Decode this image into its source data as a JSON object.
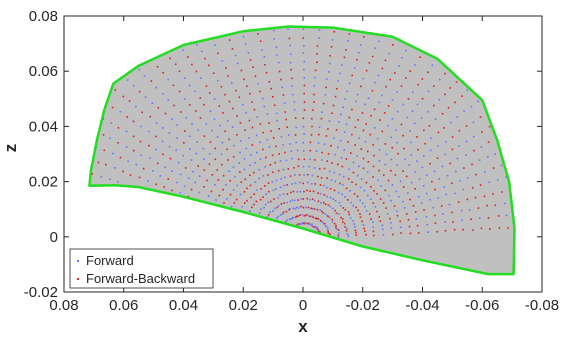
{
  "chart_data": {
    "type": "scatter",
    "title": "",
    "xlabel": "x",
    "ylabel": "z",
    "xlim": [
      0.08,
      -0.08
    ],
    "ylim": [
      -0.02,
      0.08
    ],
    "x_reversed": true,
    "grid": false,
    "legend_position": "bottom-left",
    "x_ticks": [
      {
        "value": 0.08,
        "label": "0.08"
      },
      {
        "value": 0.06,
        "label": "0.06"
      },
      {
        "value": 0.04,
        "label": "0.04"
      },
      {
        "value": 0.02,
        "label": "0.02"
      },
      {
        "value": 0,
        "label": "0"
      },
      {
        "value": -0.02,
        "label": "-0.02"
      },
      {
        "value": -0.04,
        "label": "-0.04"
      },
      {
        "value": -0.06,
        "label": "-0.06"
      },
      {
        "value": -0.08,
        "label": "-0.08"
      }
    ],
    "y_ticks": [
      {
        "value": -0.02,
        "label": "-0.02"
      },
      {
        "value": 0,
        "label": "0"
      },
      {
        "value": 0.02,
        "label": "0.02"
      },
      {
        "value": 0.04,
        "label": "0.04"
      },
      {
        "value": 0.06,
        "label": "0.06"
      },
      {
        "value": 0.08,
        "label": "0.08"
      }
    ],
    "workspace_fill_color": "#c0c0c0",
    "boundary": {
      "color": "#22dd22",
      "points": [
        [
          0.0715,
          0.0185
        ],
        [
          0.071,
          0.024
        ],
        [
          0.069,
          0.035
        ],
        [
          0.0665,
          0.046
        ],
        [
          0.0635,
          0.0555
        ],
        [
          0.055,
          0.062
        ],
        [
          0.04,
          0.0695
        ],
        [
          0.02,
          0.0745
        ],
        [
          0.005,
          0.0762
        ],
        [
          -0.01,
          0.0758
        ],
        [
          -0.03,
          0.0725
        ],
        [
          -0.045,
          0.0645
        ],
        [
          -0.06,
          0.0495
        ],
        [
          -0.065,
          0.035
        ],
        [
          -0.069,
          0.02
        ],
        [
          -0.0708,
          0.003
        ],
        [
          -0.0705,
          -0.0135
        ],
        [
          -0.062,
          -0.0135
        ],
        [
          -0.04,
          -0.0085
        ],
        [
          -0.02,
          -0.0035
        ],
        [
          0,
          0.003
        ],
        [
          0.02,
          0.009
        ],
        [
          0.04,
          0.0145
        ],
        [
          0.055,
          0.018
        ],
        [
          0.063,
          0.0187
        ],
        [
          0.0715,
          0.0185
        ]
      ]
    },
    "fan_origin": [
      0.0,
      -0.0005
    ],
    "series": [
      {
        "name": "Forward",
        "color": "#6677ff",
        "marker": "dot"
      },
      {
        "name": "Forward-Backward",
        "color": "#dd2222",
        "marker": "dot"
      }
    ]
  }
}
